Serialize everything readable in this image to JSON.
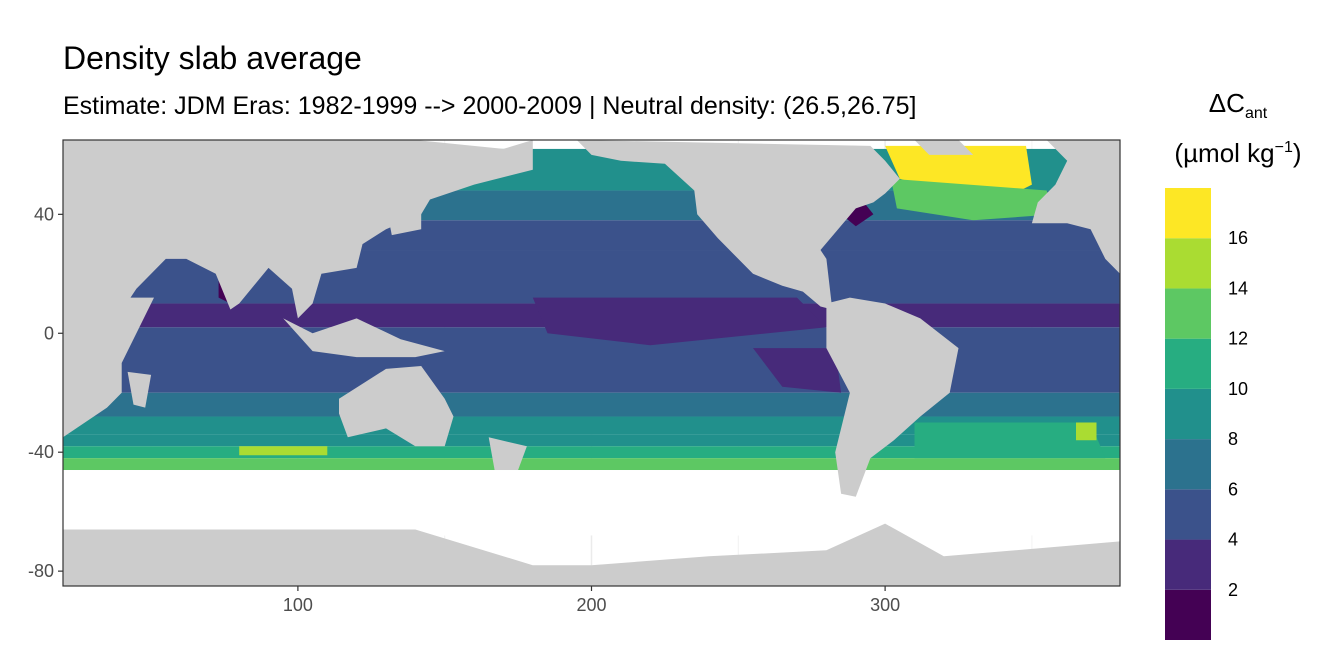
{
  "chart_data": {
    "type": "heatmap",
    "title": "Density slab average",
    "subtitle": "Estimate: JDM Eras: 1982-1999 --> 2000-2009 | Neutral density: (26.5,26.75]",
    "xlim": [
      20,
      380
    ],
    "ylim": [
      -85,
      65
    ],
    "x_ticks": [
      100,
      200,
      300
    ],
    "y_ticks": [
      40,
      0,
      -40,
      -80
    ],
    "grid": true,
    "legend": {
      "position": "right",
      "title_main": "ΔC",
      "title_sub": "ant",
      "unit_main": "(µmol kg",
      "unit_sup": "−1",
      "unit_close": ")",
      "breaks": [
        2,
        4,
        6,
        8,
        10,
        12,
        14,
        16
      ],
      "bins": [
        {
          "from": 0,
          "to": 2,
          "color": "#440154"
        },
        {
          "from": 2,
          "to": 4,
          "color": "#472A7A"
        },
        {
          "from": 4,
          "to": 6,
          "color": "#3B528B"
        },
        {
          "from": 6,
          "to": 8,
          "color": "#2C728E"
        },
        {
          "from": 8,
          "to": 10,
          "color": "#21908C"
        },
        {
          "from": 10,
          "to": 12,
          "color": "#27AD81"
        },
        {
          "from": 12,
          "to": 14,
          "color": "#5DC863"
        },
        {
          "from": 14,
          "to": 16,
          "color": "#AADC32"
        },
        {
          "from": 16,
          "to": 18,
          "color": "#FDE725"
        }
      ]
    },
    "colors": {
      "land": "#CCCCCC",
      "ocean_nodata": "#FFFFFF",
      "panel_border": "#333333"
    }
  }
}
